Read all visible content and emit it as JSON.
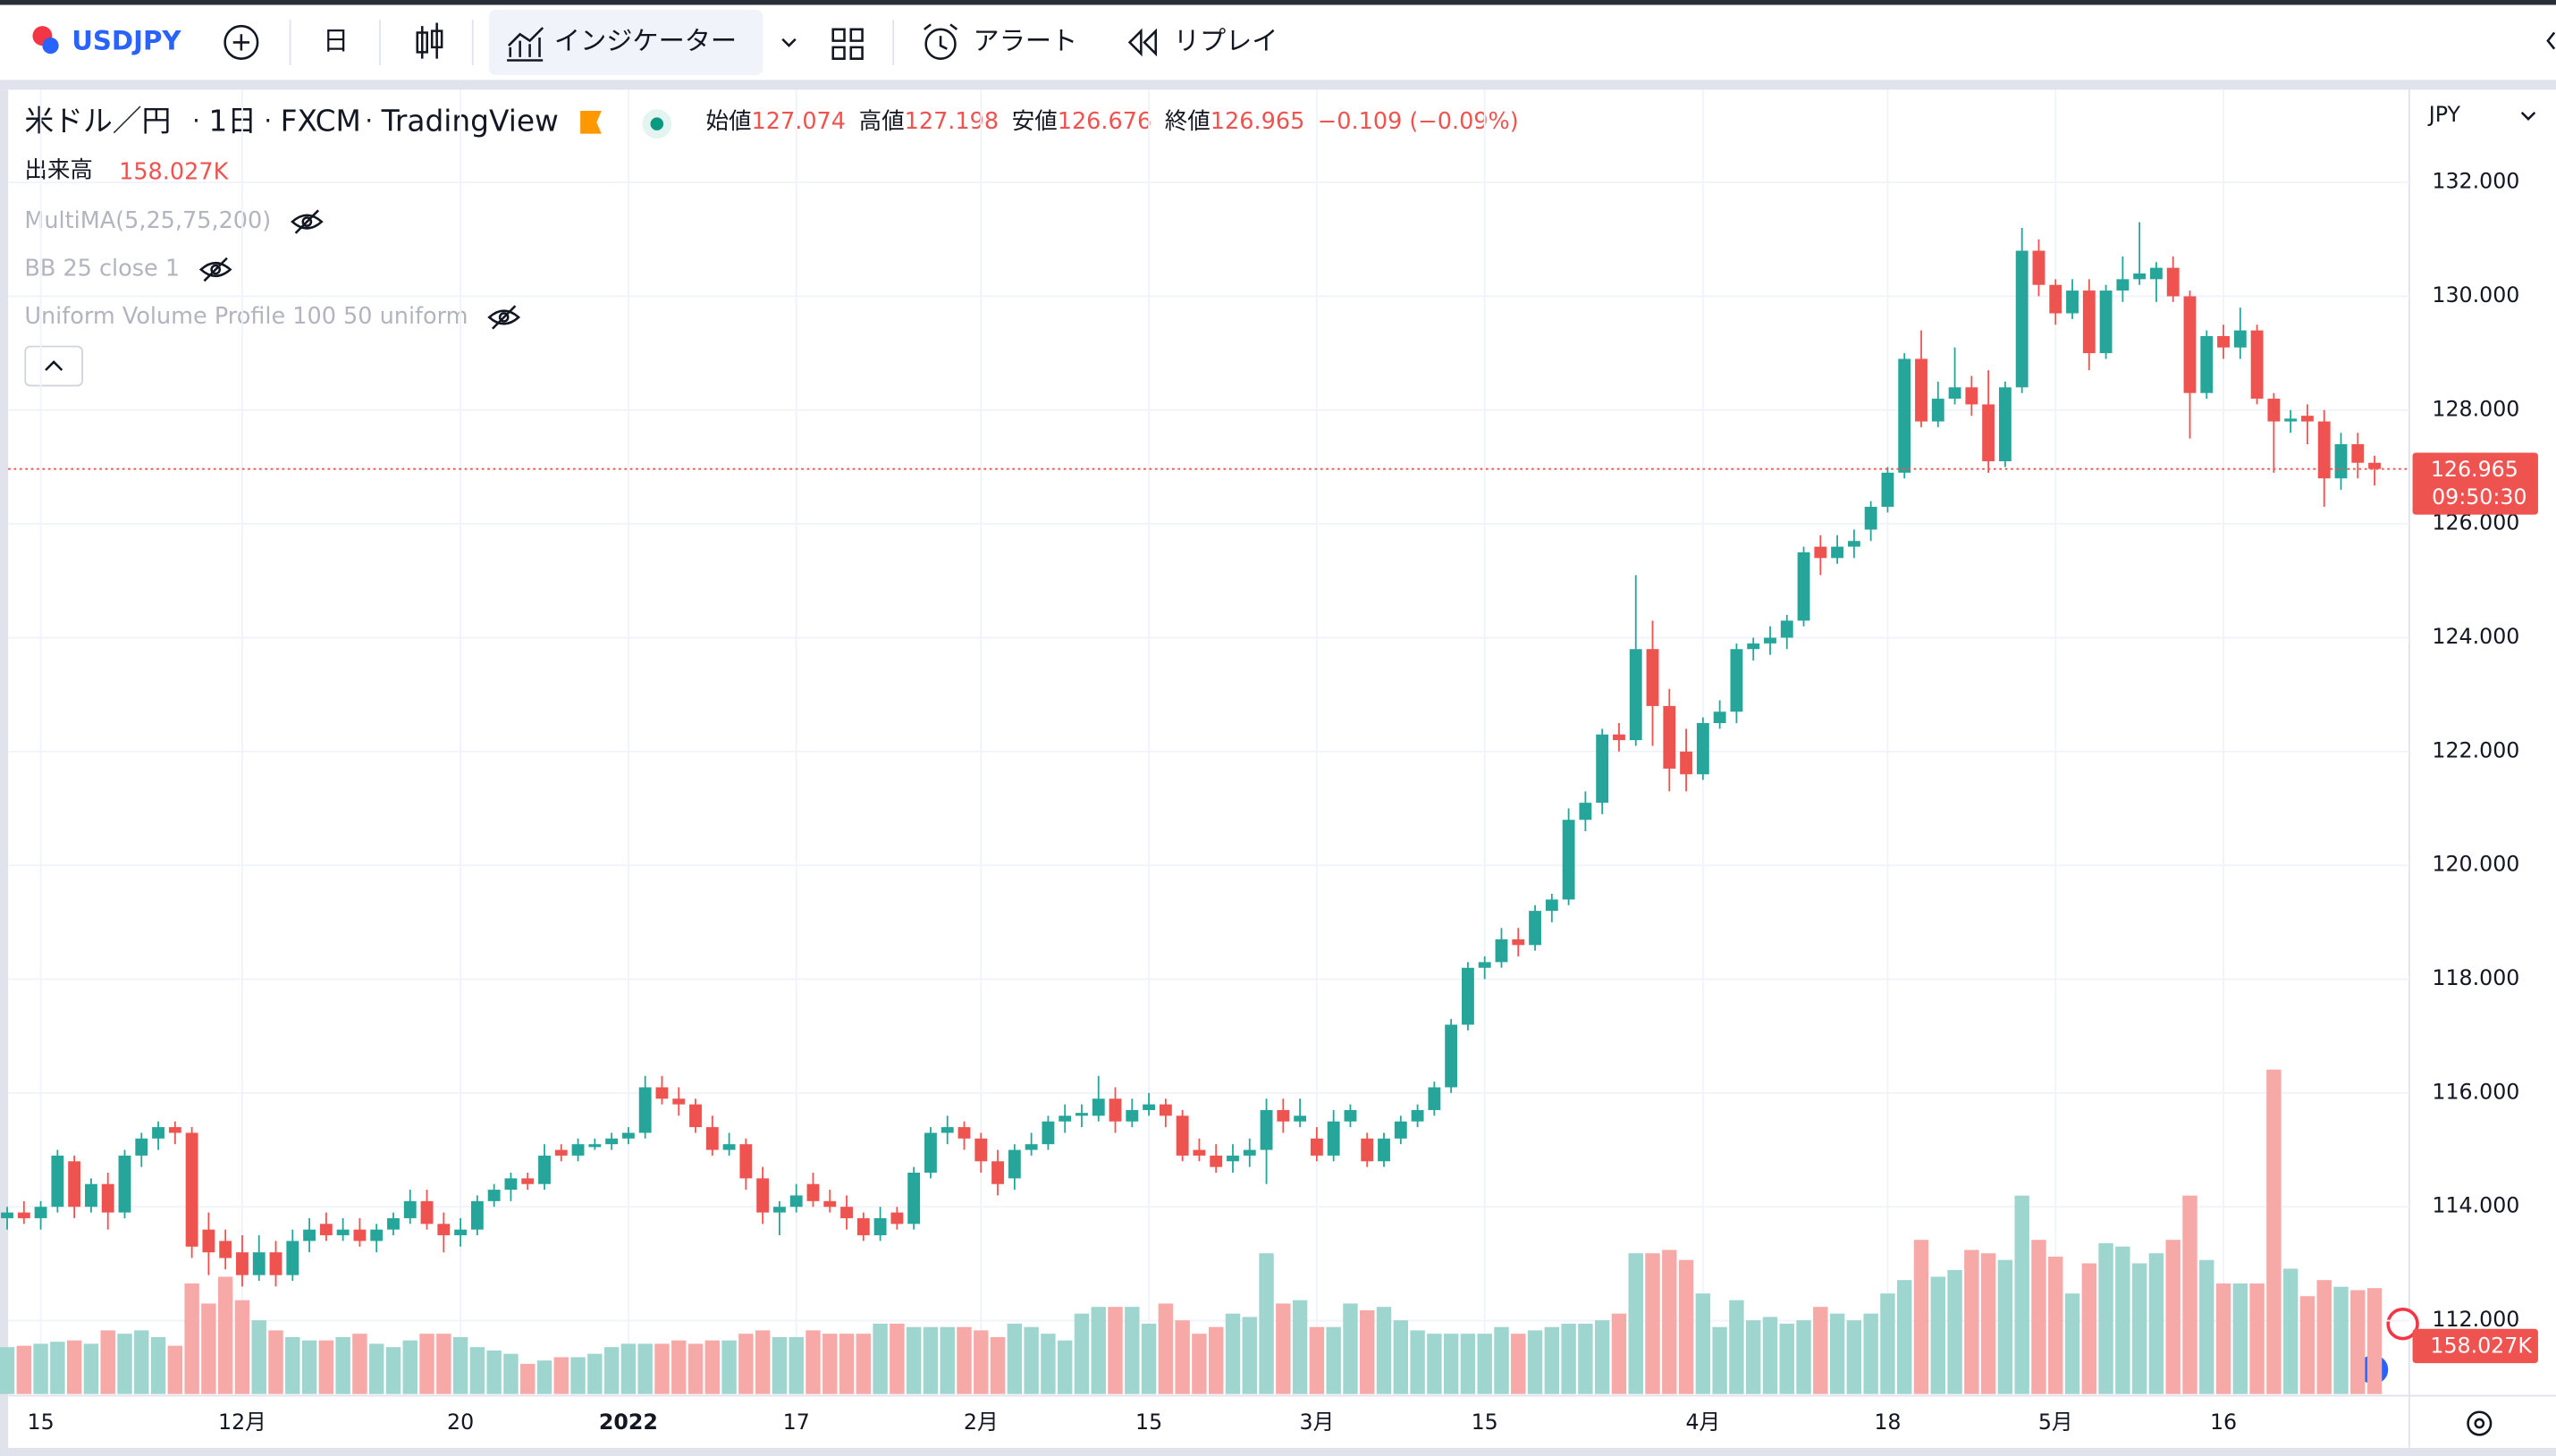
{
  "toolbar": {
    "symbol": "USDJPY",
    "interval": "日",
    "indicators": "インジケーター",
    "alert": "アラート",
    "replay": "リプレイ"
  },
  "legend": {
    "title": "米ドル／円",
    "separator": "·",
    "interval": "1日",
    "source": "FXCM",
    "platform": "TradingView",
    "ohlc": [
      {
        "label": "始値",
        "value": "127.074"
      },
      {
        "label": "高値",
        "value": "127.198"
      },
      {
        "label": "安値",
        "value": "126.676"
      },
      {
        "label": "終値",
        "value": "126.965"
      }
    ],
    "change": "−0.109 (−0.09%)",
    "volume_label": "出来高",
    "volume_value": "158.027K",
    "indicators": [
      "MultiMA(5,25,75,200)",
      "BB 25 close 1",
      "Uniform Volume Profile 100 50 uniform"
    ]
  },
  "chart_data": {
    "type": "candlestick",
    "categories": [
      null,
      null,
      "15",
      null,
      null,
      null,
      null,
      null,
      null,
      null,
      null,
      null,
      null,
      null,
      "12月",
      null,
      null,
      null,
      null,
      null,
      null,
      null,
      null,
      null,
      null,
      null,
      null,
      "20",
      null,
      null,
      null,
      null,
      null,
      null,
      null,
      null,
      null,
      "2022",
      null,
      null,
      null,
      null,
      null,
      null,
      null,
      null,
      null,
      "17",
      null,
      null,
      null,
      null,
      null,
      null,
      null,
      null,
      null,
      null,
      "2月",
      null,
      null,
      null,
      null,
      null,
      null,
      null,
      null,
      null,
      "15",
      null,
      null,
      null,
      null,
      null,
      null,
      null,
      null,
      null,
      "3月",
      null,
      null,
      null,
      null,
      null,
      null,
      null,
      null,
      null,
      "15",
      null,
      null,
      null,
      null,
      null,
      null,
      null,
      null,
      null,
      null,
      null,
      null,
      "4月",
      null,
      null,
      null,
      null,
      null,
      null,
      null,
      null,
      null,
      null,
      "18",
      null,
      null,
      null,
      null,
      null,
      null,
      null,
      null,
      null,
      "5月",
      null,
      null,
      null,
      null,
      null,
      null,
      null,
      null,
      null,
      "16",
      null,
      null,
      null,
      null,
      null,
      null,
      null,
      null,
      null
    ],
    "ohlc": [
      [
        113.8,
        114.0,
        113.6,
        113.9
      ],
      [
        113.9,
        114.1,
        113.7,
        113.8
      ],
      [
        113.8,
        114.1,
        113.6,
        114.0
      ],
      [
        114.0,
        115.0,
        113.9,
        114.9
      ],
      [
        114.8,
        114.9,
        113.8,
        114.0
      ],
      [
        114.0,
        114.5,
        113.9,
        114.4
      ],
      [
        114.4,
        114.6,
        113.6,
        113.9
      ],
      [
        113.9,
        115.0,
        113.8,
        114.9
      ],
      [
        114.9,
        115.3,
        114.7,
        115.2
      ],
      [
        115.2,
        115.5,
        115.0,
        115.4
      ],
      [
        115.4,
        115.5,
        115.1,
        115.3
      ],
      [
        115.3,
        115.4,
        113.1,
        113.3
      ],
      [
        113.6,
        113.9,
        112.8,
        113.2
      ],
      [
        113.4,
        113.6,
        112.9,
        113.1
      ],
      [
        113.2,
        113.5,
        112.6,
        112.8
      ],
      [
        112.8,
        113.5,
        112.7,
        113.2
      ],
      [
        113.2,
        113.4,
        112.6,
        112.8
      ],
      [
        112.8,
        113.6,
        112.7,
        113.4
      ],
      [
        113.4,
        113.8,
        113.2,
        113.6
      ],
      [
        113.7,
        113.9,
        113.4,
        113.5
      ],
      [
        113.5,
        113.8,
        113.4,
        113.6
      ],
      [
        113.6,
        113.8,
        113.3,
        113.4
      ],
      [
        113.4,
        113.7,
        113.2,
        113.6
      ],
      [
        113.6,
        113.9,
        113.5,
        113.8
      ],
      [
        113.8,
        114.3,
        113.7,
        114.1
      ],
      [
        114.1,
        114.3,
        113.6,
        113.7
      ],
      [
        113.7,
        113.9,
        113.2,
        113.5
      ],
      [
        113.5,
        113.8,
        113.3,
        113.6
      ],
      [
        113.6,
        114.2,
        113.5,
        114.1
      ],
      [
        114.1,
        114.4,
        114.0,
        114.3
      ],
      [
        114.3,
        114.6,
        114.1,
        114.5
      ],
      [
        114.5,
        114.6,
        114.3,
        114.4
      ],
      [
        114.4,
        115.1,
        114.3,
        114.9
      ],
      [
        115.0,
        115.1,
        114.8,
        114.9
      ],
      [
        114.9,
        115.2,
        114.8,
        115.1
      ],
      [
        115.05,
        115.2,
        115.0,
        115.1
      ],
      [
        115.1,
        115.3,
        115.0,
        115.2
      ],
      [
        115.2,
        115.4,
        115.1,
        115.3
      ],
      [
        115.3,
        116.3,
        115.2,
        116.1
      ],
      [
        116.1,
        116.3,
        115.8,
        115.9
      ],
      [
        115.9,
        116.1,
        115.6,
        115.8
      ],
      [
        115.8,
        115.9,
        115.3,
        115.4
      ],
      [
        115.4,
        115.6,
        114.9,
        115.0
      ],
      [
        115.0,
        115.3,
        114.9,
        115.1
      ],
      [
        115.1,
        115.2,
        114.3,
        114.5
      ],
      [
        114.5,
        114.7,
        113.7,
        113.9
      ],
      [
        113.9,
        114.1,
        113.5,
        114.0
      ],
      [
        114.0,
        114.4,
        113.9,
        114.2
      ],
      [
        114.4,
        114.6,
        114.0,
        114.1
      ],
      [
        114.1,
        114.3,
        113.9,
        114.0
      ],
      [
        114.0,
        114.2,
        113.6,
        113.8
      ],
      [
        113.8,
        113.9,
        113.4,
        113.5
      ],
      [
        113.5,
        114.0,
        113.4,
        113.8
      ],
      [
        113.9,
        114.0,
        113.6,
        113.7
      ],
      [
        113.7,
        114.7,
        113.6,
        114.6
      ],
      [
        114.6,
        115.4,
        114.5,
        115.3
      ],
      [
        115.3,
        115.6,
        115.1,
        115.4
      ],
      [
        115.4,
        115.5,
        115.0,
        115.2
      ],
      [
        115.2,
        115.3,
        114.6,
        114.8
      ],
      [
        114.8,
        115.0,
        114.2,
        114.4
      ],
      [
        114.5,
        115.1,
        114.3,
        115.0
      ],
      [
        115.0,
        115.3,
        114.9,
        115.1
      ],
      [
        115.1,
        115.6,
        115.0,
        115.5
      ],
      [
        115.5,
        115.8,
        115.3,
        115.6
      ],
      [
        115.6,
        115.8,
        115.4,
        115.65
      ],
      [
        115.6,
        116.3,
        115.5,
        115.9
      ],
      [
        115.9,
        116.1,
        115.3,
        115.5
      ],
      [
        115.5,
        115.9,
        115.4,
        115.7
      ],
      [
        115.7,
        116.0,
        115.6,
        115.8
      ],
      [
        115.8,
        115.9,
        115.4,
        115.6
      ],
      [
        115.6,
        115.7,
        114.8,
        114.9
      ],
      [
        115.0,
        115.2,
        114.8,
        114.9
      ],
      [
        114.9,
        115.1,
        114.6,
        114.7
      ],
      [
        114.8,
        115.1,
        114.6,
        114.9
      ],
      [
        114.9,
        115.2,
        114.7,
        115.0
      ],
      [
        115.0,
        115.9,
        114.4,
        115.7
      ],
      [
        115.7,
        115.9,
        115.3,
        115.5
      ],
      [
        115.5,
        115.9,
        115.4,
        115.6
      ],
      [
        115.2,
        115.4,
        114.8,
        114.9
      ],
      [
        114.9,
        115.7,
        114.8,
        115.5
      ],
      [
        115.5,
        115.8,
        115.4,
        115.7
      ],
      [
        115.2,
        115.3,
        114.7,
        114.8
      ],
      [
        114.8,
        115.3,
        114.7,
        115.2
      ],
      [
        115.2,
        115.6,
        115.1,
        115.5
      ],
      [
        115.5,
        115.8,
        115.4,
        115.7
      ],
      [
        115.7,
        116.2,
        115.6,
        116.1
      ],
      [
        116.1,
        117.3,
        116.0,
        117.2
      ],
      [
        117.2,
        118.3,
        117.1,
        118.2
      ],
      [
        118.2,
        118.4,
        118.0,
        118.3
      ],
      [
        118.3,
        118.9,
        118.2,
        118.7
      ],
      [
        118.7,
        118.9,
        118.4,
        118.6
      ],
      [
        118.6,
        119.3,
        118.5,
        119.2
      ],
      [
        119.2,
        119.5,
        119.0,
        119.4
      ],
      [
        119.4,
        121.0,
        119.3,
        120.8
      ],
      [
        120.8,
        121.3,
        120.6,
        121.1
      ],
      [
        121.1,
        122.4,
        120.9,
        122.3
      ],
      [
        122.3,
        122.5,
        122.0,
        122.2
      ],
      [
        122.2,
        125.1,
        122.1,
        123.8
      ],
      [
        123.8,
        124.3,
        122.1,
        122.8
      ],
      [
        122.8,
        123.1,
        121.3,
        121.7
      ],
      [
        122.0,
        122.4,
        121.3,
        121.6
      ],
      [
        121.6,
        122.6,
        121.5,
        122.5
      ],
      [
        122.5,
        122.9,
        122.4,
        122.7
      ],
      [
        122.7,
        123.9,
        122.5,
        123.8
      ],
      [
        123.8,
        124.0,
        123.6,
        123.9
      ],
      [
        123.9,
        124.2,
        123.7,
        124.0
      ],
      [
        124.0,
        124.4,
        123.8,
        124.3
      ],
      [
        124.3,
        125.6,
        124.2,
        125.5
      ],
      [
        125.6,
        125.8,
        125.1,
        125.4
      ],
      [
        125.4,
        125.8,
        125.3,
        125.6
      ],
      [
        125.6,
        125.9,
        125.4,
        125.7
      ],
      [
        125.9,
        126.4,
        125.7,
        126.3
      ],
      [
        126.3,
        127.0,
        126.2,
        126.9
      ],
      [
        126.9,
        129.0,
        126.8,
        128.9
      ],
      [
        128.9,
        129.4,
        127.7,
        127.8
      ],
      [
        127.8,
        128.5,
        127.7,
        128.2
      ],
      [
        128.2,
        129.1,
        128.1,
        128.4
      ],
      [
        128.4,
        128.6,
        127.9,
        128.1
      ],
      [
        128.1,
        128.7,
        126.9,
        127.1
      ],
      [
        127.1,
        128.5,
        127.0,
        128.4
      ],
      [
        128.4,
        131.2,
        128.3,
        130.8
      ],
      [
        130.8,
        131.0,
        130.0,
        130.2
      ],
      [
        130.2,
        130.3,
        129.5,
        129.7
      ],
      [
        129.7,
        130.3,
        129.6,
        130.1
      ],
      [
        130.1,
        130.3,
        128.7,
        129.0
      ],
      [
        129.0,
        130.2,
        128.9,
        130.1
      ],
      [
        130.1,
        130.7,
        129.9,
        130.3
      ],
      [
        130.3,
        131.3,
        130.2,
        130.4
      ],
      [
        130.3,
        130.6,
        129.9,
        130.5
      ],
      [
        130.5,
        130.7,
        129.9,
        130.0
      ],
      [
        130.0,
        130.1,
        127.5,
        128.3
      ],
      [
        128.3,
        129.4,
        128.2,
        129.3
      ],
      [
        129.3,
        129.5,
        128.9,
        129.1
      ],
      [
        129.1,
        129.8,
        128.9,
        129.4
      ],
      [
        129.4,
        129.5,
        128.1,
        128.2
      ],
      [
        128.2,
        128.3,
        126.9,
        127.8
      ],
      [
        127.8,
        128.0,
        127.6,
        127.85
      ],
      [
        127.9,
        128.1,
        127.4,
        127.8
      ],
      [
        127.8,
        128.0,
        126.3,
        126.8
      ],
      [
        126.8,
        127.6,
        126.6,
        127.4
      ],
      [
        127.4,
        127.6,
        126.8,
        127.074
      ],
      [
        127.074,
        127.198,
        126.676,
        126.965
      ]
    ],
    "volume": [
      70,
      72,
      75,
      78,
      80,
      75,
      95,
      90,
      95,
      85,
      72,
      165,
      135,
      175,
      140,
      110,
      95,
      85,
      80,
      80,
      85,
      90,
      75,
      70,
      80,
      90,
      90,
      85,
      70,
      65,
      60,
      45,
      50,
      55,
      55,
      60,
      70,
      75,
      75,
      75,
      80,
      75,
      80,
      80,
      90,
      95,
      85,
      85,
      95,
      90,
      90,
      90,
      105,
      105,
      100,
      100,
      100,
      100,
      95,
      85,
      105,
      100,
      90,
      80,
      120,
      130,
      130,
      130,
      105,
      135,
      110,
      90,
      100,
      120,
      115,
      210,
      135,
      140,
      100,
      100,
      135,
      125,
      130,
      110,
      95,
      90,
      90,
      90,
      90,
      100,
      90,
      95,
      100,
      105,
      105,
      110,
      120,
      210,
      210,
      215,
      200,
      150,
      100,
      140,
      110,
      115,
      105,
      110,
      130,
      120,
      110,
      120,
      150,
      170,
      230,
      175,
      185,
      215,
      210,
      200,
      296,
      230,
      205,
      150,
      195,
      225,
      220,
      195,
      210,
      230,
      296,
      200,
      165,
      165,
      165,
      484,
      187,
      146,
      170,
      160,
      155,
      158.027
    ],
    "ylim": [
      110.71,
      133.63
    ],
    "yticks": [
      {
        "value": 112,
        "label": "112.000"
      },
      {
        "value": 114,
        "label": "114.000"
      },
      {
        "value": 116,
        "label": "116.000"
      },
      {
        "value": 118,
        "label": "118.000"
      },
      {
        "value": 120,
        "label": "120.000"
      },
      {
        "value": 122,
        "label": "122.000"
      },
      {
        "value": 124,
        "label": "124.000"
      },
      {
        "value": 126,
        "label": "126.000"
      },
      {
        "value": 128,
        "label": "128.000"
      },
      {
        "value": 130,
        "label": "130.000"
      },
      {
        "value": 132,
        "label": "132.000"
      }
    ],
    "currency": "JPY",
    "last_price_label": "126.965",
    "countdown": "09:50:30",
    "last_volume_label": "158.027K",
    "grid": true,
    "colors": {
      "up": "#26a69a",
      "down": "#ef5350",
      "volume_up": "#9fd5cf",
      "volume_down": "#f6a9a7"
    }
  }
}
